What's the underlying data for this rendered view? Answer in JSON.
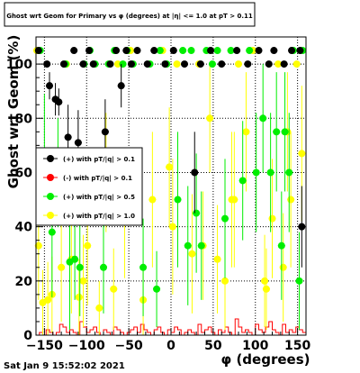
{
  "chart_data": {
    "type": "scatter",
    "title": "Ghost wrt Geom for Primary vs φ (degrees) at |η| <= 1.0 at pT > 0.11",
    "xlabel": "φ (degrees)",
    "ylabel": "Ghost wrt Geom (%)",
    "xlim": [
      -160,
      160
    ],
    "ylim": [
      0,
      110
    ],
    "xticks": [
      -150,
      -100,
      -50,
      0,
      50,
      100,
      150
    ],
    "yticks": [
      0,
      20,
      40,
      60,
      80,
      100
    ],
    "x_tick_labels": [
      "−150",
      "−100",
      "−50",
      "0",
      "50",
      "100",
      "150"
    ],
    "y_tick_labels": [
      "0",
      "20",
      "40",
      "60",
      "80",
      "100"
    ],
    "grid": true,
    "legend_position": "left",
    "footer": "Sat Jan  9 15:52:02 2021",
    "series": [
      {
        "name": "(+) with pT/|q| > 0.1",
        "color": "#000000",
        "points": [
          {
            "x": -157,
            "y": 105,
            "err": 0
          },
          {
            "x": -147,
            "y": 100,
            "err": 0
          },
          {
            "x": -144,
            "y": 92,
            "err": 5
          },
          {
            "x": -137,
            "y": 87,
            "err": 6
          },
          {
            "x": -133,
            "y": 86,
            "err": 5
          },
          {
            "x": -127,
            "y": 100,
            "err": 0
          },
          {
            "x": -122,
            "y": 73,
            "err": 12
          },
          {
            "x": -115,
            "y": 105,
            "err": 0
          },
          {
            "x": -110,
            "y": 71,
            "err": 12
          },
          {
            "x": -104,
            "y": 100,
            "err": 0
          },
          {
            "x": -97,
            "y": 105,
            "err": 0
          },
          {
            "x": -92,
            "y": 100,
            "err": 0
          },
          {
            "x": -78,
            "y": 75,
            "err": 12
          },
          {
            "x": -72,
            "y": 100,
            "err": 0
          },
          {
            "x": -65,
            "y": 105,
            "err": 0
          },
          {
            "x": -59,
            "y": 92,
            "err": 8
          },
          {
            "x": -53,
            "y": 105,
            "err": 0
          },
          {
            "x": -47,
            "y": 100,
            "err": 0
          },
          {
            "x": -40,
            "y": 105,
            "err": 0
          },
          {
            "x": -28,
            "y": 100,
            "err": 0
          },
          {
            "x": -20,
            "y": 105,
            "err": 0
          },
          {
            "x": -7,
            "y": 100,
            "err": 0
          },
          {
            "x": 3,
            "y": 105,
            "err": 0
          },
          {
            "x": 16,
            "y": 100,
            "err": 0
          },
          {
            "x": 28,
            "y": 60,
            "err": 15
          },
          {
            "x": 35,
            "y": 100,
            "err": 0
          },
          {
            "x": 47,
            "y": 105,
            "err": 0
          },
          {
            "x": 60,
            "y": 100,
            "err": 0
          },
          {
            "x": 78,
            "y": 105,
            "err": 0
          },
          {
            "x": 91,
            "y": 100,
            "err": 0
          },
          {
            "x": 104,
            "y": 105,
            "err": 0
          },
          {
            "x": 116,
            "y": 100,
            "err": 0
          },
          {
            "x": 122,
            "y": 105,
            "err": 0
          },
          {
            "x": 134,
            "y": 100,
            "err": 0
          },
          {
            "x": 143,
            "y": 105,
            "err": 0
          },
          {
            "x": 153,
            "y": 105,
            "err": 0
          },
          {
            "x": 155,
            "y": 40,
            "err": 15
          }
        ]
      },
      {
        "name": "(-) with pT/|q| > 0.1",
        "color": "#ff0000",
        "points": []
      },
      {
        "name": "(+) with pT/|q| > 0.5",
        "color": "#00ee00",
        "points": [
          {
            "x": -155,
            "y": 105,
            "err": 0
          },
          {
            "x": -150,
            "y": 67,
            "err": 22
          },
          {
            "x": -141,
            "y": 38,
            "err": 24
          },
          {
            "x": -134,
            "y": 60,
            "err": 20
          },
          {
            "x": -125,
            "y": 100,
            "err": 0
          },
          {
            "x": -120,
            "y": 27,
            "err": 25
          },
          {
            "x": -114,
            "y": 28,
            "err": 15
          },
          {
            "x": -108,
            "y": 25,
            "err": 18
          },
          {
            "x": -103,
            "y": 100,
            "err": 0
          },
          {
            "x": -96,
            "y": 105,
            "err": 0
          },
          {
            "x": -90,
            "y": 100,
            "err": 0
          },
          {
            "x": -80,
            "y": 25,
            "err": 17
          },
          {
            "x": -74,
            "y": 100,
            "err": 0
          },
          {
            "x": -67,
            "y": 105,
            "err": 0
          },
          {
            "x": -57,
            "y": 100,
            "err": 0
          },
          {
            "x": -52,
            "y": 105,
            "err": 0
          },
          {
            "x": -45,
            "y": 100,
            "err": 0
          },
          {
            "x": -33,
            "y": 25,
            "err": 18
          },
          {
            "x": -25,
            "y": 100,
            "err": 0
          },
          {
            "x": -17,
            "y": 17,
            "err": 14
          },
          {
            "x": -13,
            "y": 105,
            "err": 0
          },
          {
            "x": -5,
            "y": 100,
            "err": 0
          },
          {
            "x": 8,
            "y": 50,
            "err": 25
          },
          {
            "x": 14,
            "y": 105,
            "err": 0
          },
          {
            "x": 20,
            "y": 33,
            "err": 22
          },
          {
            "x": 24,
            "y": 105,
            "err": 0
          },
          {
            "x": 30,
            "y": 45,
            "err": 22
          },
          {
            "x": 36,
            "y": 33,
            "err": 20
          },
          {
            "x": 42,
            "y": 105,
            "err": 0
          },
          {
            "x": 49,
            "y": 100,
            "err": 0
          },
          {
            "x": 55,
            "y": 105,
            "err": 0
          },
          {
            "x": 64,
            "y": 43,
            "err": 22
          },
          {
            "x": 71,
            "y": 105,
            "err": 0
          },
          {
            "x": 85,
            "y": 57,
            "err": 22
          },
          {
            "x": 93,
            "y": 105,
            "err": 0
          },
          {
            "x": 101,
            "y": 60,
            "err": 22
          },
          {
            "x": 109,
            "y": 80,
            "err": 20
          },
          {
            "x": 118,
            "y": 60,
            "err": 22
          },
          {
            "x": 125,
            "y": 75,
            "err": 22
          },
          {
            "x": 131,
            "y": 33,
            "err": 20
          },
          {
            "x": 135,
            "y": 75,
            "err": 22
          },
          {
            "x": 140,
            "y": 60,
            "err": 22
          },
          {
            "x": 145,
            "y": 105,
            "err": 0
          },
          {
            "x": 152,
            "y": 20,
            "err": 18
          },
          {
            "x": 156,
            "y": 105,
            "err": 0
          }
        ]
      },
      {
        "name": "(+) with pT/|q| > 1.0",
        "color": "#ffff00",
        "points": [
          {
            "x": -159,
            "y": 105,
            "err": 0
          },
          {
            "x": -157,
            "y": 33,
            "err": 20
          },
          {
            "x": -152,
            "y": 12,
            "err": 12
          },
          {
            "x": -146,
            "y": 13,
            "err": 14
          },
          {
            "x": -141,
            "y": 15,
            "err": 14
          },
          {
            "x": -130,
            "y": 25,
            "err": 20
          },
          {
            "x": -124,
            "y": 100,
            "err": 0
          },
          {
            "x": -118,
            "y": 28,
            "err": 20
          },
          {
            "x": -109,
            "y": 14,
            "err": 14
          },
          {
            "x": -104,
            "y": 20,
            "err": 17
          },
          {
            "x": -99,
            "y": 33,
            "err": 22
          },
          {
            "x": -85,
            "y": 10,
            "err": 10
          },
          {
            "x": -77,
            "y": 60,
            "err": 22
          },
          {
            "x": -68,
            "y": 17,
            "err": 15
          },
          {
            "x": -63,
            "y": 100,
            "err": 0
          },
          {
            "x": -55,
            "y": 43,
            "err": 22
          },
          {
            "x": -48,
            "y": 105,
            "err": 0
          },
          {
            "x": -33,
            "y": 13,
            "err": 13
          },
          {
            "x": -22,
            "y": 50,
            "err": 25
          },
          {
            "x": -10,
            "y": 105,
            "err": 0
          },
          {
            "x": -2,
            "y": 62,
            "err": 22
          },
          {
            "x": 2,
            "y": 40,
            "err": 25
          },
          {
            "x": 7,
            "y": 100,
            "err": 0
          },
          {
            "x": 25,
            "y": 30,
            "err": 22
          },
          {
            "x": 33,
            "y": 100,
            "err": 0
          },
          {
            "x": 38,
            "y": 33,
            "err": 20
          },
          {
            "x": 46,
            "y": 80,
            "err": 20
          },
          {
            "x": 55,
            "y": 28,
            "err": 20
          },
          {
            "x": 64,
            "y": 20,
            "err": 18
          },
          {
            "x": 72,
            "y": 50,
            "err": 25
          },
          {
            "x": 75,
            "y": 50,
            "err": 25
          },
          {
            "x": 80,
            "y": 100,
            "err": 0
          },
          {
            "x": 89,
            "y": 75,
            "err": 22
          },
          {
            "x": 97,
            "y": 105,
            "err": 0
          },
          {
            "x": 111,
            "y": 20,
            "err": 17
          },
          {
            "x": 113,
            "y": 17,
            "err": 15
          },
          {
            "x": 120,
            "y": 43,
            "err": 22
          },
          {
            "x": 127,
            "y": 100,
            "err": 0
          },
          {
            "x": 133,
            "y": 25,
            "err": 20
          },
          {
            "x": 138,
            "y": 75,
            "err": 22
          },
          {
            "x": 142,
            "y": 50,
            "err": 25
          },
          {
            "x": 149,
            "y": 100,
            "err": 0
          },
          {
            "x": 155,
            "y": 67,
            "err": 25
          }
        ]
      }
    ],
    "histogram": {
      "color": "#ff0000",
      "bin_width": 4,
      "x_start": -160,
      "values": [
        0,
        1,
        0,
        2,
        1,
        0,
        1,
        4,
        3,
        1,
        2,
        1,
        0,
        5,
        3,
        1,
        2,
        3,
        1,
        0,
        2,
        1,
        0,
        3,
        2,
        1,
        0,
        1,
        2,
        3,
        1,
        4,
        2,
        1,
        0,
        2,
        3,
        1,
        0,
        2,
        1,
        3,
        2,
        0,
        1,
        2,
        1,
        0,
        4,
        1,
        2,
        3,
        1,
        0,
        2,
        1,
        3,
        1,
        0,
        6,
        3,
        1,
        2,
        1,
        0,
        4,
        2,
        1,
        3,
        5,
        2,
        1,
        0,
        4,
        1,
        2,
        1,
        3,
        2,
        1
      ]
    }
  }
}
